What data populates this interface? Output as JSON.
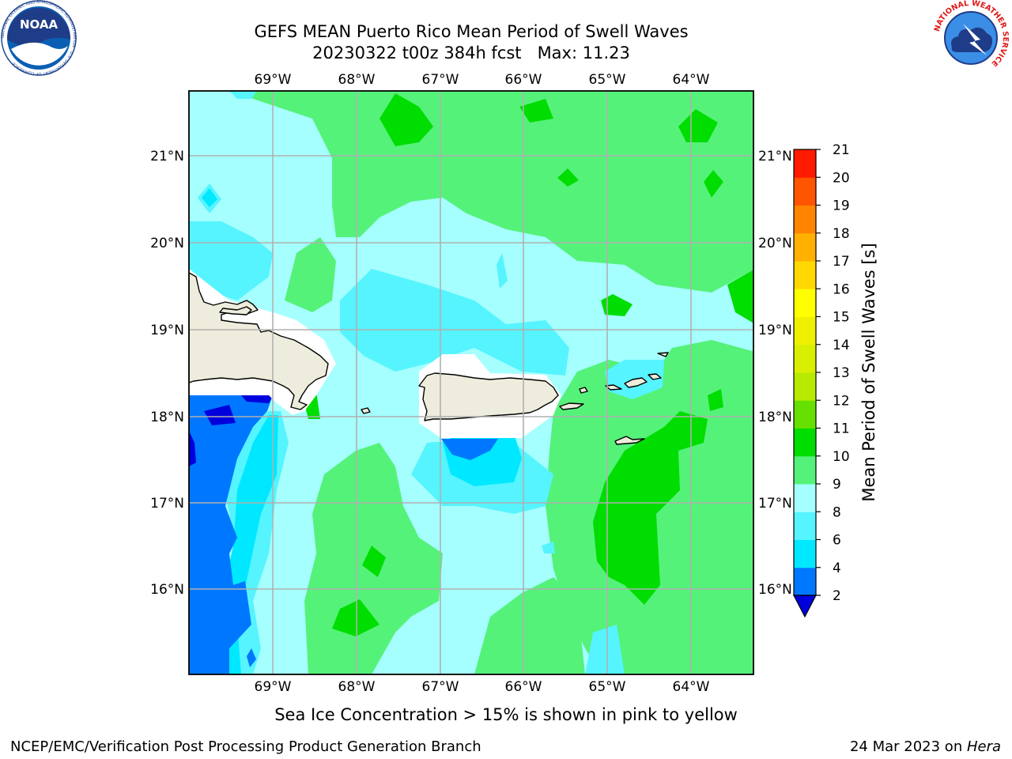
{
  "header": {
    "title_line1": "GEFS MEAN Puerto Rico Mean Period of Swell Waves",
    "title_line2": "20230322 t00z 384h fcst   Max: 11.23"
  },
  "logos": {
    "left": "NOAA",
    "left_ring": "NATIONAL OCEANIC AND ATMOSPHERIC ADMINISTRATION · U.S. DEPARTMENT OF COMMERCE",
    "right_ring": "NATIONAL WEATHER SERVICE"
  },
  "map": {
    "lon_range": [
      -70.0,
      -63.25
    ],
    "lat_range": [
      15.0,
      21.75
    ],
    "lon_ticks": [
      "69°W",
      "68°W",
      "67°W",
      "66°W",
      "65°W",
      "64°W"
    ],
    "lat_ticks": [
      "21°N",
      "20°N",
      "19°N",
      "18°N",
      "17°N",
      "16°N"
    ],
    "grid": true,
    "colors": {
      "land": "#eeecdc",
      "coast": "#000000",
      "grid": "#b0b0b0",
      "mask": "#ffffff"
    }
  },
  "colorbar": {
    "label": "Mean Period of Swell Waves [s]",
    "levels": [
      "2",
      "4",
      "6",
      "8",
      "9",
      "10",
      "11",
      "12",
      "13",
      "14",
      "15",
      "16",
      "17",
      "18",
      "19",
      "20",
      "21"
    ],
    "colors": [
      "#0077ff",
      "#00e8ff",
      "#55f4ff",
      "#a6ffff",
      "#55f27a",
      "#00dd00",
      "#66e000",
      "#b8ea00",
      "#d8f000",
      "#eef000",
      "#ffff00",
      "#ffd800",
      "#ffb000",
      "#ff8400",
      "#ff5400",
      "#ff1a00"
    ],
    "under_color": "#0000dd"
  },
  "footer": {
    "note": "Sea Ice Concentration > 15% is shown in pink to yellow",
    "credit": "NCEP/EMC/Verification Post Processing Product Generation Branch",
    "date": "24 Mar 2023 on ",
    "host": "Hera"
  }
}
